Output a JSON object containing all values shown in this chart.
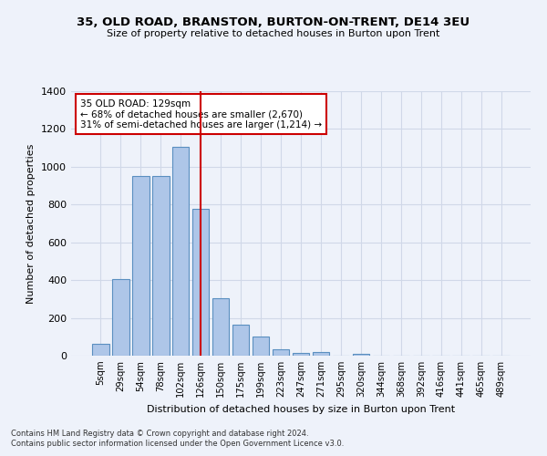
{
  "title1": "35, OLD ROAD, BRANSTON, BURTON-ON-TRENT, DE14 3EU",
  "title2": "Size of property relative to detached houses in Burton upon Trent",
  "xlabel": "Distribution of detached houses by size in Burton upon Trent",
  "ylabel": "Number of detached properties",
  "footnote1": "Contains HM Land Registry data © Crown copyright and database right 2024.",
  "footnote2": "Contains public sector information licensed under the Open Government Licence v3.0.",
  "bar_labels": [
    "5sqm",
    "29sqm",
    "54sqm",
    "78sqm",
    "102sqm",
    "126sqm",
    "150sqm",
    "175sqm",
    "199sqm",
    "223sqm",
    "247sqm",
    "271sqm",
    "295sqm",
    "320sqm",
    "344sqm",
    "368sqm",
    "392sqm",
    "416sqm",
    "441sqm",
    "465sqm",
    "489sqm"
  ],
  "bar_values": [
    65,
    405,
    950,
    950,
    1105,
    775,
    305,
    165,
    100,
    35,
    15,
    20,
    0,
    10,
    0,
    0,
    0,
    0,
    0,
    0,
    0
  ],
  "bar_color": "#aec6e8",
  "bar_edge_color": "#5a8fc0",
  "grid_color": "#d0d8e8",
  "bg_color": "#eef2fa",
  "vline_x": 5,
  "vline_color": "#cc0000",
  "annotation_text": "35 OLD ROAD: 129sqm\n← 68% of detached houses are smaller (2,670)\n31% of semi-detached houses are larger (1,214) →",
  "annotation_box_color": "#cc0000",
  "ylim": [
    0,
    1400
  ],
  "yticks": [
    0,
    200,
    400,
    600,
    800,
    1000,
    1200,
    1400
  ]
}
